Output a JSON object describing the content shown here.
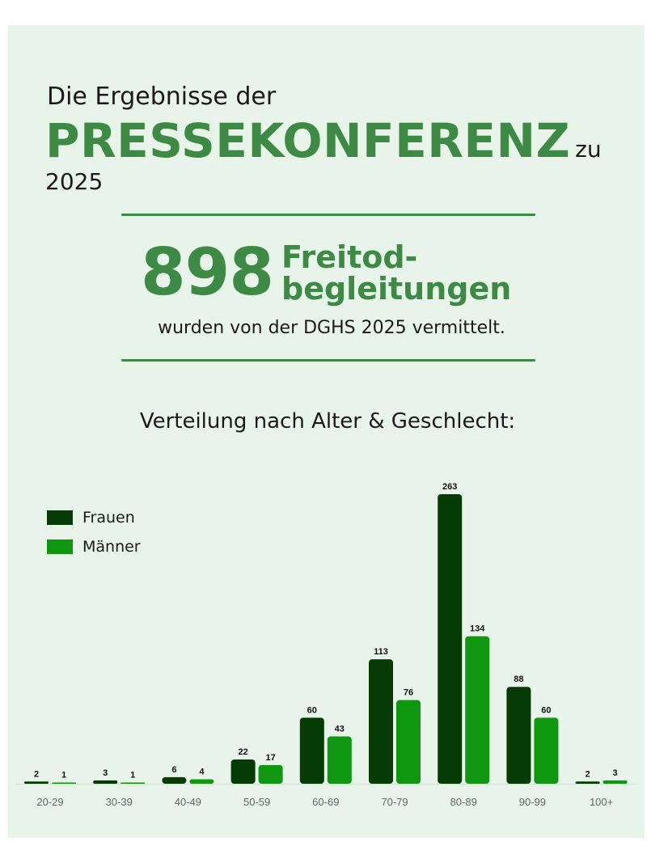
{
  "header": {
    "line1": "Die Ergebnisse der",
    "big": "PRESSEKONFERENZ",
    "year": "zu 2025"
  },
  "stat": {
    "number": "898",
    "label_line1": "Freitod-",
    "label_line2": "begleitungen",
    "subtitle": "wurden von der DGHS 2025 vermittelt."
  },
  "section_title": "Verteilung nach Alter & Geschlecht:",
  "colors": {
    "accent": "#3c8a43",
    "frauen": "#063b06",
    "maenner": "#0f970f",
    "background": "#e8f3e9"
  },
  "chart_data": {
    "type": "bar",
    "categories": [
      "20-29",
      "30-39",
      "40-49",
      "50-59",
      "60-69",
      "70-79",
      "80-89",
      "90-99",
      "100+"
    ],
    "series": [
      {
        "name": "Frauen",
        "values": [
          2,
          3,
          6,
          22,
          60,
          113,
          263,
          88,
          2
        ]
      },
      {
        "name": "Männer",
        "values": [
          1,
          1,
          4,
          17,
          43,
          76,
          134,
          60,
          3
        ]
      }
    ],
    "ylim": [
      0,
      263
    ],
    "legend": "top-left",
    "grid": false,
    "data_labels": true
  }
}
